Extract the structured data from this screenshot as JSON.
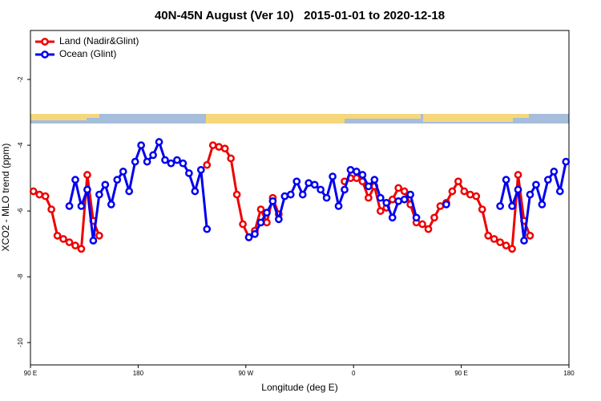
{
  "chart_data": {
    "type": "line",
    "title": "40N-45N August (Ver 10)   2015-01-01 to 2020-12-18",
    "xlabel": "Longitude (deg E)",
    "ylabel": "XCO2 - MLO trend (ppm)",
    "xlim": [
      90,
      540
    ],
    "ylim": [
      -10.68,
      -0.51
    ],
    "xticks": [
      {
        "value": 90,
        "label": "90 E"
      },
      180,
      {
        "value": 270,
        "label": "90 W"
      },
      {
        "value": 360,
        "label": "0"
      },
      {
        "value": 450,
        "label": "90 E"
      },
      {
        "value": 540,
        "label": "180"
      }
    ],
    "yticks": [
      -2,
      -4,
      -6,
      -8,
      -10
    ],
    "legend": "top-left",
    "x": [
      92.5,
      97.5,
      102.5,
      107.5,
      112.5,
      117.5,
      122.5,
      127.5,
      132.5,
      137.5,
      142.5,
      147.5,
      152.5,
      157.5,
      162.5,
      167.5,
      172.5,
      177.5,
      182.5,
      187.5,
      192.5,
      197.5,
      202.5,
      207.5,
      212.5,
      217.5,
      222.5,
      227.5,
      232.5,
      237.5,
      242.5,
      247.5,
      252.5,
      257.5,
      262.5,
      267.5,
      272.5,
      277.5,
      282.5,
      287.5,
      292.5,
      297.5,
      302.5,
      307.5,
      312.5,
      317.5,
      322.5,
      327.5,
      332.5,
      337.5,
      342.5,
      347.5,
      352.5,
      357.5,
      362.5,
      367.5,
      372.5,
      377.5,
      382.5,
      387.5,
      392.5,
      397.5,
      402.5,
      407.5,
      412.5,
      417.5,
      422.5,
      427.5,
      432.5,
      437.5,
      442.5,
      447.5,
      452.5,
      457.5,
      462.5,
      467.5,
      472.5,
      477.5,
      482.5,
      487.5,
      492.5,
      497.5,
      502.5,
      507.5,
      512.5,
      517.5,
      522.5,
      527.5,
      532.5,
      537.5
    ],
    "series": [
      {
        "name": "Land (Nadir&Glint)",
        "color": "#ee0000",
        "values": [
          -5.4,
          -5.5,
          -5.55,
          -5.95,
          -6.75,
          -6.85,
          -6.95,
          -7.05,
          -7.15,
          -4.9,
          -6.3,
          -6.75,
          null,
          null,
          null,
          null,
          null,
          null,
          null,
          null,
          null,
          null,
          null,
          null,
          null,
          null,
          null,
          null,
          null,
          -4.6,
          -4.0,
          -4.05,
          -4.1,
          -4.4,
          -5.5,
          -6.4,
          -6.8,
          -6.6,
          -5.95,
          -6.35,
          -5.6,
          -6.1,
          null,
          null,
          null,
          null,
          null,
          null,
          null,
          null,
          null,
          null,
          -5.1,
          -5.0,
          -5.0,
          -5.1,
          -5.6,
          -5.25,
          -6.0,
          -5.9,
          -5.65,
          -5.3,
          -5.4,
          -5.8,
          -6.35,
          -6.4,
          -6.55,
          -6.2,
          -5.85,
          -5.75,
          -5.4,
          -5.1,
          -5.4,
          -5.5,
          -5.55,
          -5.95,
          -6.75,
          -6.85,
          -6.95,
          -7.05,
          -7.15,
          -4.9,
          -6.3,
          -6.75,
          null,
          null,
          null,
          null,
          null,
          null
        ]
      },
      {
        "name": "Ocean (Glint)",
        "color": "#0000ee",
        "values": [
          null,
          null,
          null,
          null,
          null,
          null,
          -5.85,
          -5.05,
          -5.85,
          -5.35,
          -6.9,
          -5.5,
          -5.2,
          -5.8,
          -5.05,
          -4.8,
          -5.4,
          -4.5,
          -4.0,
          -4.5,
          -4.3,
          -3.9,
          -4.45,
          -4.55,
          -4.45,
          -4.55,
          -4.85,
          -5.4,
          -4.75,
          -6.55,
          null,
          null,
          null,
          null,
          null,
          null,
          -6.8,
          -6.7,
          -6.35,
          -6.05,
          -5.7,
          -6.25,
          -5.55,
          -5.5,
          -5.1,
          -5.5,
          -5.15,
          -5.2,
          -5.35,
          -5.6,
          -4.95,
          -5.85,
          -5.35,
          -4.75,
          -4.8,
          -4.9,
          -5.25,
          -5.05,
          -5.6,
          -5.75,
          -6.2,
          -5.7,
          -5.65,
          -5.5,
          -6.2,
          null,
          null,
          null,
          null,
          -5.8,
          null,
          null,
          null,
          null,
          null,
          null,
          null,
          null,
          -5.85,
          -5.05,
          -5.85,
          -5.35,
          -6.9,
          -5.5,
          -5.2,
          -5.8,
          -5.05,
          -4.8,
          -5.4,
          -4.5
        ]
      }
    ]
  }
}
